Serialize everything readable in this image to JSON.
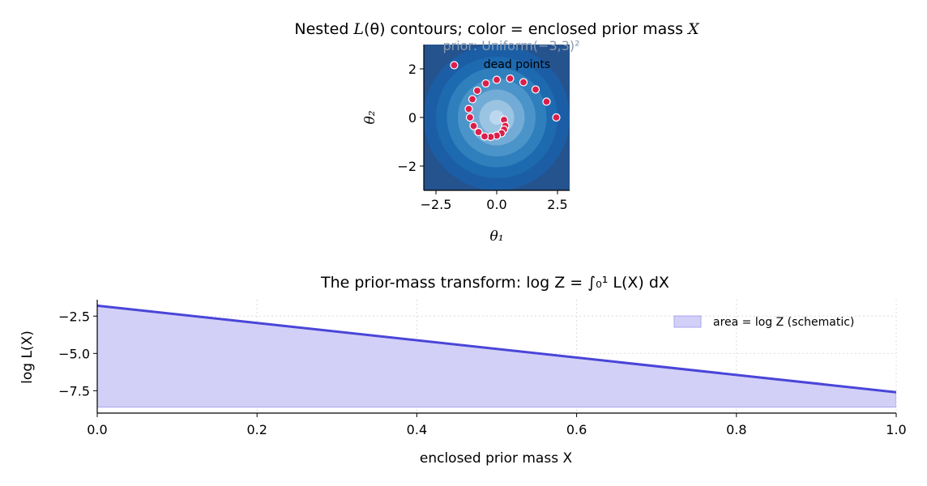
{
  "colors": {
    "contour_levels": [
      "#24538e",
      "#1c5ea6",
      "#1d6ab0",
      "#2f7fbd",
      "#4b94c9",
      "#72acd6",
      "#9bc4e2",
      "#bcd8ee"
    ],
    "dead_point": "#dc1e4b",
    "curve": "#4a45d8",
    "fill": "#d2d0f7",
    "fill_edge": "#a9a5ee",
    "prior_text": "#8a9ab0"
  },
  "chart_data": [
    {
      "type": "scatter",
      "title": "Nested L(θ) contours; color = enclosed prior mass X",
      "title_parts": [
        "Nested ",
        "L",
        "(θ) contours; color = enclosed prior mass ",
        "X"
      ],
      "xlabel": "θ₁",
      "ylabel": "θ₂",
      "xlim": [
        -3,
        3
      ],
      "ylim": [
        -3,
        3
      ],
      "xticks": [
        -2.5,
        0.0,
        2.5
      ],
      "xtick_labels": [
        "−2.5",
        "0.0",
        "2.5"
      ],
      "yticks": [
        -2,
        0,
        2
      ],
      "ytick_labels": [
        "−2",
        "0",
        "2"
      ],
      "contour_center": [
        0,
        0
      ],
      "contour_radii": [
        3.4,
        3.0,
        2.5,
        2.05,
        1.6,
        1.15,
        0.72,
        0.3
      ],
      "prior_annotation": "prior: Uniform(−3,3)²",
      "point_annotation": "dead points",
      "points": [
        {
          "x": 0.3,
          "y": -0.1
        },
        {
          "x": 0.35,
          "y": -0.35
        },
        {
          "x": 0.3,
          "y": -0.5
        },
        {
          "x": 0.2,
          "y": -0.65
        },
        {
          "x": 0.0,
          "y": -0.75
        },
        {
          "x": -0.25,
          "y": -0.8
        },
        {
          "x": -0.5,
          "y": -0.78
        },
        {
          "x": -0.75,
          "y": -0.6
        },
        {
          "x": -0.95,
          "y": -0.35
        },
        {
          "x": -1.1,
          "y": 0.0
        },
        {
          "x": -1.15,
          "y": 0.35
        },
        {
          "x": -1.0,
          "y": 0.75
        },
        {
          "x": -0.8,
          "y": 1.1
        },
        {
          "x": -0.45,
          "y": 1.4
        },
        {
          "x": 0.0,
          "y": 1.55
        },
        {
          "x": 0.55,
          "y": 1.6
        },
        {
          "x": 1.1,
          "y": 1.45
        },
        {
          "x": 1.6,
          "y": 1.15
        },
        {
          "x": 2.05,
          "y": 0.65
        },
        {
          "x": 2.45,
          "y": 0.0
        },
        {
          "x": -1.75,
          "y": 2.15
        }
      ]
    },
    {
      "type": "area",
      "title": "The prior-mass transform: log Z = ∫₀¹ L(X) dX",
      "xlabel": "enclosed prior mass X",
      "ylabel": "log L(X)",
      "xlim": [
        0,
        1
      ],
      "ylim": [
        -9,
        -1.4
      ],
      "baseline": -8.6,
      "xticks": [
        0,
        0.2,
        0.4,
        0.6,
        0.8,
        1.0
      ],
      "xtick_labels": [
        "0.0",
        "0.2",
        "0.4",
        "0.6",
        "0.8",
        "1.0"
      ],
      "yticks": [
        -2.5,
        -5.0,
        -7.5
      ],
      "ytick_labels": [
        "−2.5",
        "−5.0",
        "−7.5"
      ],
      "x": [
        0,
        1
      ],
      "y": [
        -1.8,
        -7.6
      ],
      "legend_label": "area  = log Z  (schematic)",
      "legend_position": "top-right",
      "grid": true
    }
  ]
}
